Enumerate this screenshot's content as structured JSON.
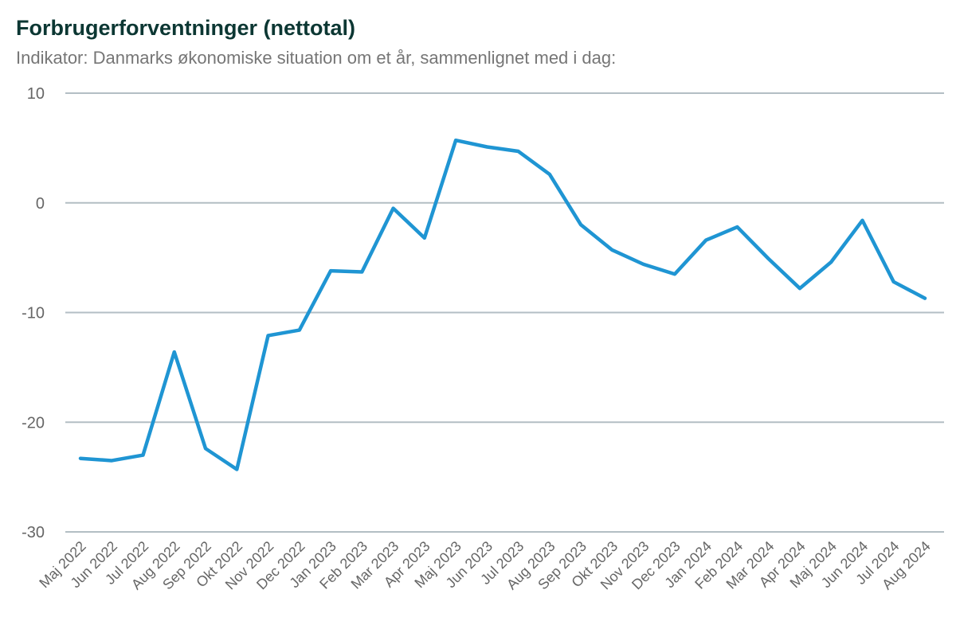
{
  "page": {
    "title": "Forbrugerforventninger (nettotal)",
    "subtitle": "Indikator: Danmarks økonomiske situation om et år, sammenlignet med i dag:"
  },
  "colors": {
    "title": "#0c3733",
    "subtitle": "#767676",
    "axis_label": "#666666",
    "gridline": "#b3bec4",
    "line": "#1f95d3",
    "background": "#ffffff"
  },
  "chart_data": {
    "type": "line",
    "title": "Forbrugerforventninger (nettotal)",
    "subtitle": "Indikator: Danmarks økonomiske situation om et år, sammenlignet med i dag:",
    "categories": [
      "Maj 2022",
      "Jun 2022",
      "Jul 2022",
      "Aug 2022",
      "Sep 2022",
      "Okt 2022",
      "Nov 2022",
      "Dec 2022",
      "Jan 2023",
      "Feb 2023",
      "Mar 2023",
      "Apr 2023",
      "Maj 2023",
      "Jun 2023",
      "Jul 2023",
      "Aug 2023",
      "Sep 2023",
      "Okt 2023",
      "Nov 2023",
      "Dec 2023",
      "Jan 2024",
      "Feb 2024",
      "Mar 2024",
      "Apr 2024",
      "Maj 2024",
      "Jun 2024",
      "Jul 2024",
      "Aug 2024"
    ],
    "series": [
      {
        "name": "Nettotal",
        "values": [
          -23.3,
          -23.5,
          -23.0,
          -13.6,
          -22.4,
          -24.3,
          -12.1,
          -11.6,
          -6.2,
          -6.3,
          -0.5,
          -3.2,
          5.7,
          5.1,
          4.7,
          2.6,
          -2.0,
          -4.3,
          -5.6,
          -6.5,
          -3.4,
          -2.2,
          -5.1,
          -7.8,
          -5.4,
          -1.6,
          -7.2,
          -8.7
        ]
      }
    ],
    "xlabel": "",
    "ylabel": "",
    "ylim": [
      -30,
      10
    ],
    "yticks": [
      10,
      0,
      -10,
      -20,
      -30
    ],
    "grid": "horizontal",
    "legend": "none",
    "x_tick_rotation": -45
  }
}
